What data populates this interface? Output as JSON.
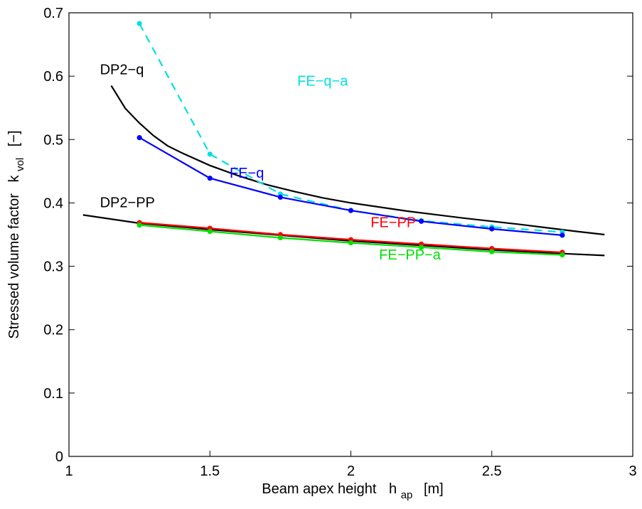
{
  "chart_data": {
    "type": "line",
    "xlabel": "Beam apex height",
    "xlabel_symbol": "h",
    "xlabel_sub": "ap",
    "xlabel_unit": "[m]",
    "ylabel": "Stressed volume factor",
    "ylabel_symbol": "k",
    "ylabel_sub": "vol",
    "ylabel_unit": "[−]",
    "xlim": [
      1,
      3
    ],
    "ylim": [
      0,
      0.7
    ],
    "xticks": [
      1,
      1.5,
      2,
      2.5,
      3
    ],
    "xtick_labels": [
      "1",
      "1.5",
      "2",
      "2.5",
      "3"
    ],
    "yticks": [
      0,
      0.1,
      0.2,
      0.3,
      0.4,
      0.5,
      0.6,
      0.7
    ],
    "ytick_labels": [
      "0",
      "0.1",
      "0.2",
      "0.3",
      "0.4",
      "0.5",
      "0.6",
      "0.7"
    ],
    "grid": false,
    "series": [
      {
        "name": "DP2−q",
        "color": "#000000",
        "dash": "solid",
        "markers": false,
        "x": [
          1.15,
          1.2,
          1.25,
          1.3,
          1.35,
          1.4,
          1.5,
          1.6,
          1.7,
          1.8,
          1.9,
          2.0,
          2.2,
          2.4,
          2.6,
          2.8,
          2.9
        ],
        "y": [
          0.585,
          0.549,
          0.526,
          0.506,
          0.49,
          0.479,
          0.459,
          0.443,
          0.429,
          0.418,
          0.408,
          0.4,
          0.387,
          0.376,
          0.366,
          0.355,
          0.35
        ]
      },
      {
        "name": "DP2−PP",
        "color": "#000000",
        "dash": "solid",
        "markers": false,
        "x": [
          1.05,
          1.25,
          1.5,
          1.75,
          2.0,
          2.25,
          2.5,
          2.75,
          2.9
        ],
        "y": [
          0.381,
          0.368,
          0.358,
          0.349,
          0.34,
          0.333,
          0.326,
          0.32,
          0.317
        ]
      },
      {
        "name": "FE−q-a",
        "color": "#00e0e0",
        "dash": "dashed",
        "markers": true,
        "x": [
          1.25,
          1.5,
          1.75,
          2.0,
          2.25,
          2.5,
          2.75
        ],
        "y": [
          0.683,
          0.477,
          0.414,
          0.388,
          0.372,
          0.362,
          0.354
        ]
      },
      {
        "name": "FE−q",
        "color": "#0000ff",
        "dash": "solid",
        "markers": true,
        "x": [
          1.25,
          1.5,
          1.75,
          2.0,
          2.25,
          2.5,
          2.75
        ],
        "y": [
          0.503,
          0.439,
          0.409,
          0.388,
          0.371,
          0.359,
          0.349
        ]
      },
      {
        "name": "FE−PP",
        "color": "#ff0000",
        "dash": "solid",
        "markers": true,
        "x": [
          1.25,
          1.5,
          1.75,
          2.0,
          2.25,
          2.5,
          2.75
        ],
        "y": [
          0.369,
          0.36,
          0.35,
          0.342,
          0.335,
          0.328,
          0.322
        ]
      },
      {
        "name": "FE−PP−a",
        "color": "#00e000",
        "dash": "solid",
        "markers": true,
        "x": [
          1.25,
          1.5,
          1.75,
          2.0,
          2.25,
          2.5,
          2.75
        ],
        "y": [
          0.365,
          0.355,
          0.345,
          0.337,
          0.33,
          0.323,
          0.318
        ]
      }
    ],
    "annotations": [
      {
        "text": "DP2−q",
        "color": "#000000",
        "x": 1.11,
        "y": 0.603
      },
      {
        "text": "FE−q−a",
        "color": "#00e0e0",
        "x": 1.81,
        "y": 0.585
      },
      {
        "text": "FE−q",
        "color": "#0000ff",
        "x": 1.57,
        "y": 0.44
      },
      {
        "text": "DP2−PP",
        "color": "#000000",
        "x": 1.11,
        "y": 0.393
      },
      {
        "text": "FE−PP",
        "color": "#ff0000",
        "x": 2.07,
        "y": 0.362
      },
      {
        "text": "FE−PP−a",
        "color": "#00e000",
        "x": 2.1,
        "y": 0.311
      }
    ]
  }
}
